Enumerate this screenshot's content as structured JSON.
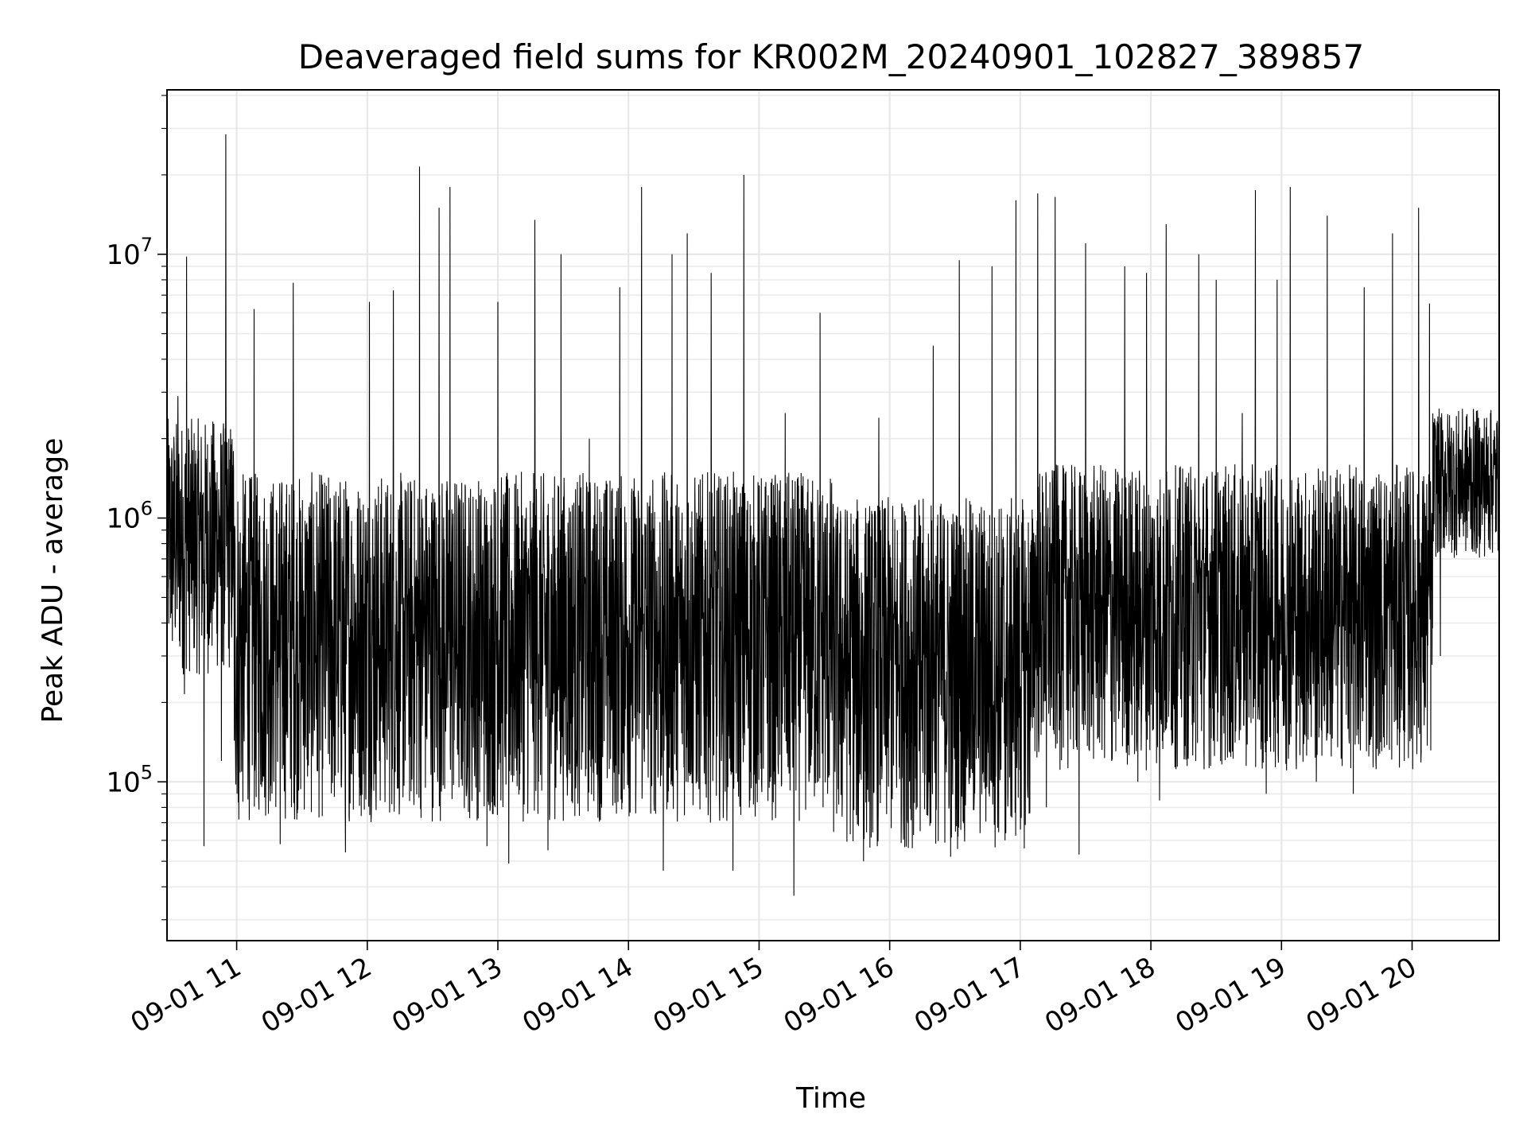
{
  "chart_data": {
    "type": "line",
    "title": "Deaveraged field sums for KR002M_20240901_102827_389857",
    "xlabel": "Time",
    "ylabel": "Peak ADU - average",
    "x_range": [
      "2024-09-01T10:28",
      "2024-09-01T20:40"
    ],
    "y_scale": "log",
    "y_range": [
      25000,
      42000000
    ],
    "x_ticks": [
      {
        "t": "2024-09-01T11:00",
        "label": "09-01 11"
      },
      {
        "t": "2024-09-01T12:00",
        "label": "09-01 12"
      },
      {
        "t": "2024-09-01T13:00",
        "label": "09-01 13"
      },
      {
        "t": "2024-09-01T14:00",
        "label": "09-01 14"
      },
      {
        "t": "2024-09-01T15:00",
        "label": "09-01 15"
      },
      {
        "t": "2024-09-01T16:00",
        "label": "09-01 16"
      },
      {
        "t": "2024-09-01T17:00",
        "label": "09-01 17"
      },
      {
        "t": "2024-09-01T18:00",
        "label": "09-01 18"
      },
      {
        "t": "2024-09-01T19:00",
        "label": "09-01 19"
      },
      {
        "t": "2024-09-01T20:00",
        "label": "09-01 20"
      }
    ],
    "y_ticks": [
      {
        "value": 100000,
        "base": "10",
        "exp": "5"
      },
      {
        "value": 1000000,
        "base": "10",
        "exp": "6"
      },
      {
        "value": 10000000,
        "base": "10",
        "exp": "7"
      }
    ],
    "grid": true,
    "line_color": "#000000",
    "series": [
      {
        "points": [
          [
            "2024-09-01T10:28",
            1800000
          ],
          [
            "2024-09-01T10:33",
            2900000
          ],
          [
            "2024-09-01T10:36",
            215000
          ],
          [
            "2024-09-01T10:37",
            9800000
          ],
          [
            "2024-09-01T10:40",
            580000
          ],
          [
            "2024-09-01T10:45",
            57000
          ],
          [
            "2024-09-01T10:48",
            400000
          ],
          [
            "2024-09-01T10:53",
            120000
          ],
          [
            "2024-09-01T10:55",
            28500000
          ],
          [
            "2024-09-01T10:58",
            600000
          ],
          [
            "2024-09-01T11:01",
            72000
          ],
          [
            "2024-09-01T11:08",
            6200000
          ],
          [
            "2024-09-01T11:14",
            350000
          ],
          [
            "2024-09-01T11:20",
            58000
          ],
          [
            "2024-09-01T11:26",
            7800000
          ],
          [
            "2024-09-01T11:30",
            500000
          ],
          [
            "2024-09-01T11:37",
            110000
          ],
          [
            "2024-09-01T11:45",
            420000
          ],
          [
            "2024-09-01T11:50",
            54000
          ],
          [
            "2024-09-01T11:57",
            900000
          ],
          [
            "2024-09-01T12:01",
            6600000
          ],
          [
            "2024-09-01T12:07",
            450000
          ],
          [
            "2024-09-01T12:12",
            7300000
          ],
          [
            "2024-09-01T12:17",
            400000
          ],
          [
            "2024-09-01T12:24",
            21500000
          ],
          [
            "2024-09-01T12:28",
            600000
          ],
          [
            "2024-09-01T12:33",
            15000000
          ],
          [
            "2024-09-01T12:38",
            18000000
          ],
          [
            "2024-09-01T12:42",
            450000
          ],
          [
            "2024-09-01T12:48",
            130000
          ],
          [
            "2024-09-01T12:55",
            57000
          ],
          [
            "2024-09-01T13:00",
            6600000
          ],
          [
            "2024-09-01T13:05",
            49000
          ],
          [
            "2024-09-01T13:10",
            700000
          ],
          [
            "2024-09-01T13:17",
            13500000
          ],
          [
            "2024-09-01T13:23",
            55000
          ],
          [
            "2024-09-01T13:29",
            10000000
          ],
          [
            "2024-09-01T13:35",
            400000
          ],
          [
            "2024-09-01T13:42",
            2000000
          ],
          [
            "2024-09-01T13:50",
            300000
          ],
          [
            "2024-09-01T13:56",
            7500000
          ],
          [
            "2024-09-01T14:04",
            150000
          ],
          [
            "2024-09-01T14:06",
            18000000
          ],
          [
            "2024-09-01T14:10",
            900000
          ],
          [
            "2024-09-01T14:16",
            46000
          ],
          [
            "2024-09-01T14:20",
            10000000
          ],
          [
            "2024-09-01T14:27",
            12000000
          ],
          [
            "2024-09-01T14:32",
            180000
          ],
          [
            "2024-09-01T14:38",
            8500000
          ],
          [
            "2024-09-01T14:44",
            400000
          ],
          [
            "2024-09-01T14:48",
            46000
          ],
          [
            "2024-09-01T14:53",
            20000000
          ],
          [
            "2024-09-01T14:58",
            600000
          ],
          [
            "2024-09-01T15:05",
            100000
          ],
          [
            "2024-09-01T15:12",
            2500000
          ],
          [
            "2024-09-01T15:16",
            37000
          ],
          [
            "2024-09-01T15:22",
            300000
          ],
          [
            "2024-09-01T15:28",
            6000000
          ],
          [
            "2024-09-01T15:36",
            800000
          ],
          [
            "2024-09-01T15:42",
            150000
          ],
          [
            "2024-09-01T15:48",
            50000
          ],
          [
            "2024-09-01T15:55",
            2400000
          ],
          [
            "2024-09-01T16:00",
            500000
          ],
          [
            "2024-09-01T16:06",
            1100000
          ],
          [
            "2024-09-01T16:14",
            65000
          ],
          [
            "2024-09-01T16:20",
            4500000
          ],
          [
            "2024-09-01T16:28",
            52000
          ],
          [
            "2024-09-01T16:32",
            9500000
          ],
          [
            "2024-09-01T16:40",
            400000
          ],
          [
            "2024-09-01T16:47",
            9000000
          ],
          [
            "2024-09-01T16:53",
            60000
          ],
          [
            "2024-09-01T16:58",
            16000000
          ],
          [
            "2024-09-01T17:03",
            400000
          ],
          [
            "2024-09-01T17:08",
            17000000
          ],
          [
            "2024-09-01T17:12",
            80000
          ],
          [
            "2024-09-01T17:16",
            16500000
          ],
          [
            "2024-09-01T17:22",
            700000
          ],
          [
            "2024-09-01T17:27",
            53000
          ],
          [
            "2024-09-01T17:30",
            11000000
          ],
          [
            "2024-09-01T17:36",
            1200000
          ],
          [
            "2024-09-01T17:42",
            120000
          ],
          [
            "2024-09-01T17:48",
            9000000
          ],
          [
            "2024-09-01T17:54",
            100000
          ],
          [
            "2024-09-01T17:58",
            8500000
          ],
          [
            "2024-09-01T18:04",
            85000
          ],
          [
            "2024-09-01T18:07",
            13000000
          ],
          [
            "2024-09-01T18:14",
            350000
          ],
          [
            "2024-09-01T18:22",
            10000000
          ],
          [
            "2024-09-01T18:30",
            8000000
          ],
          [
            "2024-09-01T18:36",
            130000
          ],
          [
            "2024-09-01T18:42",
            2500000
          ],
          [
            "2024-09-01T18:48",
            17500000
          ],
          [
            "2024-09-01T18:53",
            90000
          ],
          [
            "2024-09-01T18:58",
            8000000
          ],
          [
            "2024-09-01T19:04",
            18000000
          ],
          [
            "2024-09-01T19:10",
            550000
          ],
          [
            "2024-09-01T19:16",
            100000
          ],
          [
            "2024-09-01T19:21",
            14000000
          ],
          [
            "2024-09-01T19:28",
            450000
          ],
          [
            "2024-09-01T19:33",
            90000
          ],
          [
            "2024-09-01T19:38",
            7500000
          ],
          [
            "2024-09-01T19:45",
            400000
          ],
          [
            "2024-09-01T19:51",
            12000000
          ],
          [
            "2024-09-01T19:57",
            1200000
          ],
          [
            "2024-09-01T20:03",
            15000000
          ],
          [
            "2024-09-01T20:08",
            6500000
          ],
          [
            "2024-09-01T20:13",
            300000
          ],
          [
            "2024-09-01T20:18",
            2200000
          ],
          [
            "2024-09-01T20:25",
            1100000
          ],
          [
            "2024-09-01T20:32",
            1300000
          ],
          [
            "2024-09-01T20:36",
            2500000
          ],
          [
            "2024-09-01T20:40",
            1500000
          ]
        ]
      }
    ]
  }
}
